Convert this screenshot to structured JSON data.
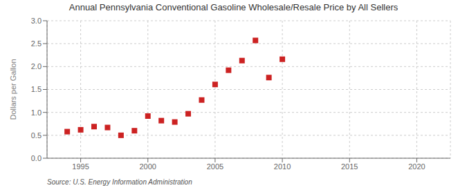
{
  "chart_data": {
    "type": "scatter",
    "title": "Annual Pennsylvania Conventional Gasoline Wholesale/Resale Price by All Sellers",
    "ylabel": "Dollars per Gallon",
    "source": "Source: U.S. Energy Information Administration",
    "x": [
      1994,
      1995,
      1996,
      1997,
      1998,
      1999,
      2000,
      2001,
      2002,
      2003,
      2004,
      2005,
      2006,
      2007,
      2008,
      2009,
      2010
    ],
    "values": [
      0.58,
      0.62,
      0.69,
      0.67,
      0.5,
      0.6,
      0.92,
      0.82,
      0.79,
      0.97,
      1.27,
      1.61,
      1.92,
      2.13,
      2.57,
      1.76,
      2.16
    ],
    "color": "#cc2222",
    "marker": "square",
    "xlim": [
      1992.5,
      2022.5
    ],
    "ylim": [
      0.0,
      3.0
    ],
    "xticks": [
      1995,
      2000,
      2005,
      2010,
      2015,
      2020
    ],
    "yticks": [
      {
        "value": 0.0,
        "label": "0.0"
      },
      0.5,
      {
        "value": 1.0,
        "label": "1.0"
      },
      1.5,
      {
        "value": 2.0,
        "label": "2.0"
      },
      2.5,
      {
        "value": 3.0,
        "label": "3.0"
      }
    ],
    "grid": true
  }
}
